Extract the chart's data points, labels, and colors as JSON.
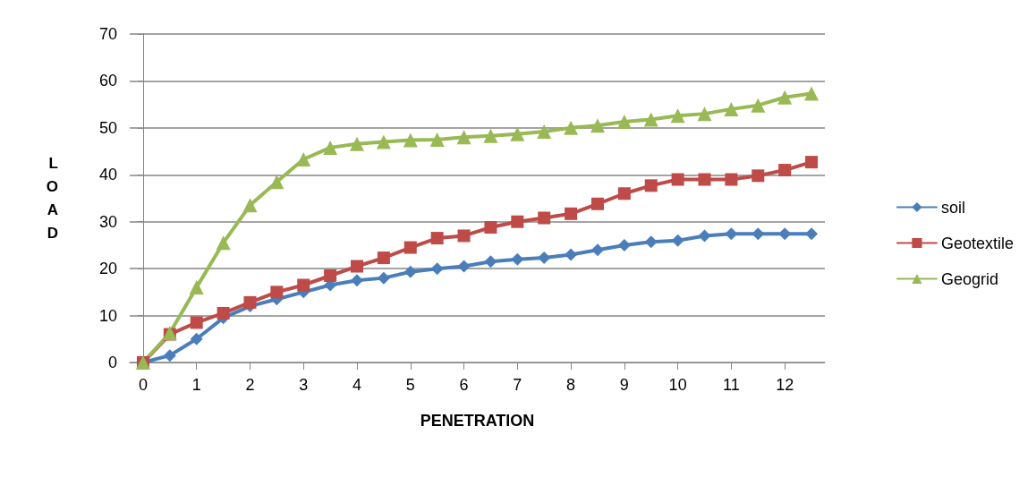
{
  "chart_data": {
    "type": "line",
    "xlabel": "PENETRATION",
    "ylabel": "LOAD",
    "x": [
      0,
      0.5,
      1,
      1.5,
      2,
      2.5,
      3,
      3.5,
      4,
      4.5,
      5,
      5.5,
      6,
      6.5,
      7,
      7.5,
      8,
      8.5,
      9,
      9.5,
      10,
      10.5,
      11,
      11.5,
      12,
      12.5
    ],
    "xlim": [
      -0.25,
      12.75
    ],
    "xticks": [
      0,
      1,
      2,
      3,
      4,
      5,
      6,
      7,
      8,
      9,
      10,
      11,
      12
    ],
    "series": [
      {
        "name": "soil",
        "color": "#4a7ebb",
        "marker": "diamond",
        "values": [
          0,
          1.5,
          5,
          9.5,
          12,
          13.5,
          15,
          16.5,
          17.5,
          18,
          19.3,
          20,
          20.5,
          21.5,
          22,
          22.3,
          23,
          24,
          25,
          25.7,
          26,
          27,
          27.4,
          27.4,
          27.4,
          27.4
        ]
      },
      {
        "name": "Geotextile",
        "color": "#be4b48",
        "marker": "square",
        "values": [
          0,
          6,
          8.5,
          10.5,
          12.8,
          15,
          16.5,
          18.5,
          20.5,
          22.3,
          24.5,
          26.5,
          27,
          28.8,
          30,
          30.8,
          31.7,
          33.8,
          36,
          37.7,
          39,
          39,
          39,
          39.8,
          41,
          42.7
        ]
      },
      {
        "name": "Geogrid",
        "color": "#98b954",
        "marker": "triangle",
        "values": [
          0,
          6.3,
          16,
          25.5,
          33.5,
          38.5,
          43.3,
          45.8,
          46.6,
          47,
          47.4,
          47.5,
          48,
          48.3,
          48.7,
          49.2,
          50,
          50.5,
          51.3,
          51.8,
          52.6,
          53,
          54,
          54.8,
          56.5,
          57.3
        ]
      }
    ],
    "ylim": [
      0,
      70
    ],
    "yticks": [
      0,
      10,
      20,
      30,
      40,
      50,
      60,
      70
    ],
    "grid": "y",
    "legend": "right",
    "line_style": "solid"
  }
}
